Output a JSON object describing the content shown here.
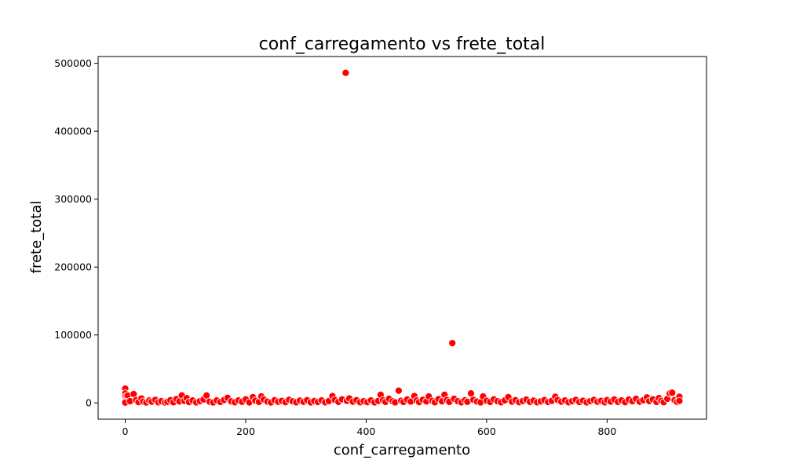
{
  "chart_data": {
    "type": "scatter",
    "title": "conf_carregamento vs frete_total",
    "xlabel": "conf_carregamento",
    "ylabel": "frete_total",
    "xlim": [
      -45,
      965
    ],
    "ylim": [
      -24000,
      510000
    ],
    "xticks": [
      0,
      200,
      400,
      600,
      800
    ],
    "yticks": [
      0,
      100000,
      200000,
      300000,
      400000,
      500000
    ],
    "grid": false,
    "legend": "none",
    "marker_color": "#ff0000",
    "marker_edge_color": "#ffffff",
    "points": [
      [
        0,
        21000
      ],
      [
        0,
        14000
      ],
      [
        0,
        9000
      ],
      [
        0,
        6000
      ],
      [
        0,
        3500
      ],
      [
        0,
        1500
      ],
      [
        0,
        500
      ],
      [
        4,
        11000
      ],
      [
        8,
        2500
      ],
      [
        14,
        13000
      ],
      [
        18,
        4000
      ],
      [
        22,
        1200
      ],
      [
        27,
        6500
      ],
      [
        30,
        2000
      ],
      [
        35,
        600
      ],
      [
        40,
        3500
      ],
      [
        44,
        1800
      ],
      [
        50,
        4500
      ],
      [
        55,
        900
      ],
      [
        60,
        2500
      ],
      [
        66,
        600
      ],
      [
        70,
        1500
      ],
      [
        75,
        4000
      ],
      [
        80,
        900
      ],
      [
        85,
        5500
      ],
      [
        90,
        2200
      ],
      [
        94,
        11000
      ],
      [
        98,
        3000
      ],
      [
        102,
        7000
      ],
      [
        106,
        1200
      ],
      [
        112,
        3500
      ],
      [
        118,
        800
      ],
      [
        124,
        2600
      ],
      [
        130,
        5000
      ],
      [
        135,
        11000
      ],
      [
        140,
        1800
      ],
      [
        146,
        700
      ],
      [
        152,
        3500
      ],
      [
        158,
        1400
      ],
      [
        164,
        4200
      ],
      [
        170,
        7500
      ],
      [
        176,
        2200
      ],
      [
        182,
        900
      ],
      [
        188,
        3500
      ],
      [
        194,
        1600
      ],
      [
        200,
        5200
      ],
      [
        206,
        800
      ],
      [
        212,
        8500
      ],
      [
        216,
        3200
      ],
      [
        222,
        1500
      ],
      [
        226,
        9500
      ],
      [
        230,
        5000
      ],
      [
        236,
        2000
      ],
      [
        242,
        700
      ],
      [
        248,
        4000
      ],
      [
        254,
        1700
      ],
      [
        260,
        3000
      ],
      [
        266,
        1100
      ],
      [
        272,
        4600
      ],
      [
        278,
        2300
      ],
      [
        284,
        900
      ],
      [
        290,
        3400
      ],
      [
        296,
        1600
      ],
      [
        302,
        4000
      ],
      [
        308,
        800
      ],
      [
        314,
        2800
      ],
      [
        320,
        1300
      ],
      [
        326,
        3600
      ],
      [
        332,
        900
      ],
      [
        338,
        2700
      ],
      [
        344,
        10000
      ],
      [
        348,
        4300
      ],
      [
        354,
        1500
      ],
      [
        360,
        5200
      ],
      [
        366,
        486000
      ],
      [
        368,
        3000
      ],
      [
        372,
        6500
      ],
      [
        378,
        1800
      ],
      [
        384,
        4000
      ],
      [
        390,
        900
      ],
      [
        396,
        2500
      ],
      [
        402,
        1200
      ],
      [
        408,
        3600
      ],
      [
        414,
        800
      ],
      [
        420,
        2900
      ],
      [
        424,
        12000
      ],
      [
        428,
        4000
      ],
      [
        432,
        1500
      ],
      [
        438,
        6000
      ],
      [
        444,
        2400
      ],
      [
        448,
        800
      ],
      [
        454,
        18000
      ],
      [
        458,
        3200
      ],
      [
        462,
        1400
      ],
      [
        468,
        5000
      ],
      [
        474,
        2000
      ],
      [
        480,
        10000
      ],
      [
        484,
        3500
      ],
      [
        488,
        1200
      ],
      [
        494,
        4600
      ],
      [
        500,
        2200
      ],
      [
        504,
        9500
      ],
      [
        510,
        3000
      ],
      [
        514,
        900
      ],
      [
        520,
        5500
      ],
      [
        526,
        2300
      ],
      [
        530,
        12000
      ],
      [
        534,
        4200
      ],
      [
        538,
        1500
      ],
      [
        543,
        88000
      ],
      [
        546,
        6000
      ],
      [
        552,
        2500
      ],
      [
        558,
        900
      ],
      [
        564,
        3800
      ],
      [
        568,
        1600
      ],
      [
        574,
        14000
      ],
      [
        578,
        4500
      ],
      [
        584,
        2000
      ],
      [
        590,
        800
      ],
      [
        594,
        9500
      ],
      [
        600,
        3200
      ],
      [
        606,
        1400
      ],
      [
        612,
        5200
      ],
      [
        618,
        2400
      ],
      [
        624,
        900
      ],
      [
        630,
        3600
      ],
      [
        636,
        8500
      ],
      [
        642,
        1800
      ],
      [
        648,
        4000
      ],
      [
        654,
        1000
      ],
      [
        660,
        2700
      ],
      [
        666,
        4800
      ],
      [
        672,
        1500
      ],
      [
        678,
        3300
      ],
      [
        684,
        900
      ],
      [
        690,
        2200
      ],
      [
        696,
        4100
      ],
      [
        702,
        1300
      ],
      [
        708,
        3000
      ],
      [
        714,
        9000
      ],
      [
        718,
        4200
      ],
      [
        724,
        1800
      ],
      [
        730,
        3500
      ],
      [
        736,
        900
      ],
      [
        742,
        2500
      ],
      [
        748,
        4500
      ],
      [
        754,
        1400
      ],
      [
        760,
        3200
      ],
      [
        766,
        800
      ],
      [
        772,
        2600
      ],
      [
        778,
        4300
      ],
      [
        784,
        1700
      ],
      [
        790,
        3000
      ],
      [
        796,
        900
      ],
      [
        800,
        4100
      ],
      [
        806,
        2000
      ],
      [
        812,
        5000
      ],
      [
        818,
        1500
      ],
      [
        824,
        3600
      ],
      [
        830,
        1000
      ],
      [
        836,
        4800
      ],
      [
        842,
        2400
      ],
      [
        848,
        6000
      ],
      [
        854,
        1800
      ],
      [
        860,
        3900
      ],
      [
        866,
        8000
      ],
      [
        870,
        2600
      ],
      [
        876,
        5200
      ],
      [
        882,
        1400
      ],
      [
        886,
        7000
      ],
      [
        890,
        3000
      ],
      [
        894,
        1000
      ],
      [
        900,
        6000
      ],
      [
        904,
        14000
      ],
      [
        908,
        15000
      ],
      [
        912,
        4000
      ],
      [
        916,
        1500
      ],
      [
        920,
        9000
      ],
      [
        920,
        3000
      ]
    ]
  }
}
